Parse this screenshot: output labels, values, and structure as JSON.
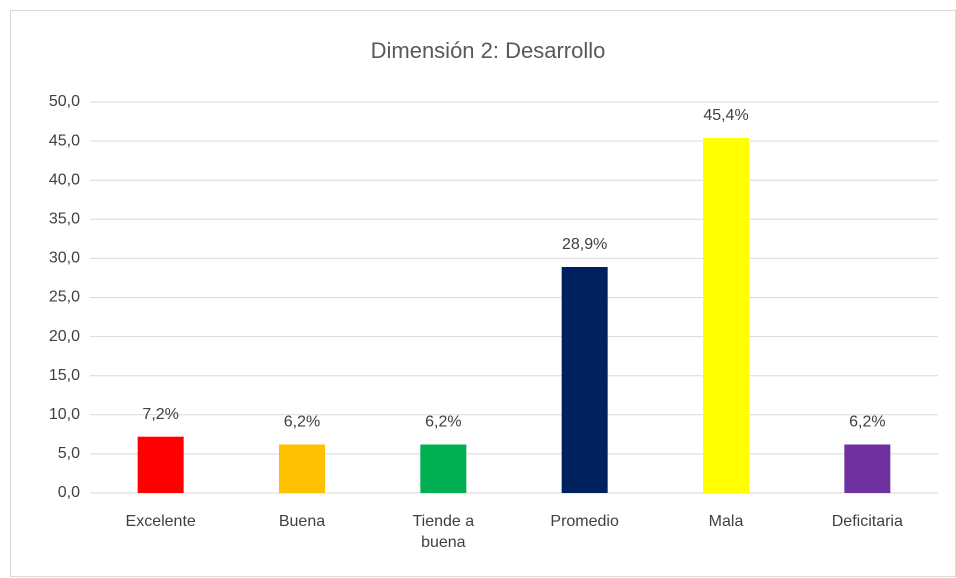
{
  "chart_data": {
    "type": "bar",
    "title": "Dimensión 2: Desarrollo",
    "categories": [
      "Excelente",
      "Buena",
      "Tiende a buena",
      "Promedio",
      "Mala",
      "Deficitaria"
    ],
    "values": [
      7.2,
      6.2,
      6.2,
      28.9,
      45.4,
      6.2
    ],
    "value_labels": [
      "7,2%",
      "6,2%",
      "6,2%",
      "28,9%",
      "45,4%",
      "6,2%"
    ],
    "colors": [
      "#ff0000",
      "#ffc000",
      "#00b050",
      "#002060",
      "#ffff00",
      "#7030a0"
    ],
    "ylim": [
      0,
      50
    ],
    "yticks": [
      {
        "value": 0,
        "label": "0,0"
      },
      {
        "value": 5,
        "label": "5,0"
      },
      {
        "value": 10,
        "label": "10,0"
      },
      {
        "value": 15,
        "label": "15,0"
      },
      {
        "value": 20,
        "label": "20,0"
      },
      {
        "value": 25,
        "label": "25,0"
      },
      {
        "value": 30,
        "label": "30,0"
      },
      {
        "value": 35,
        "label": "35,0"
      },
      {
        "value": 40,
        "label": "40,0"
      },
      {
        "value": 45,
        "label": "45,0"
      },
      {
        "value": 50,
        "label": "50,0"
      }
    ],
    "grid": true
  }
}
